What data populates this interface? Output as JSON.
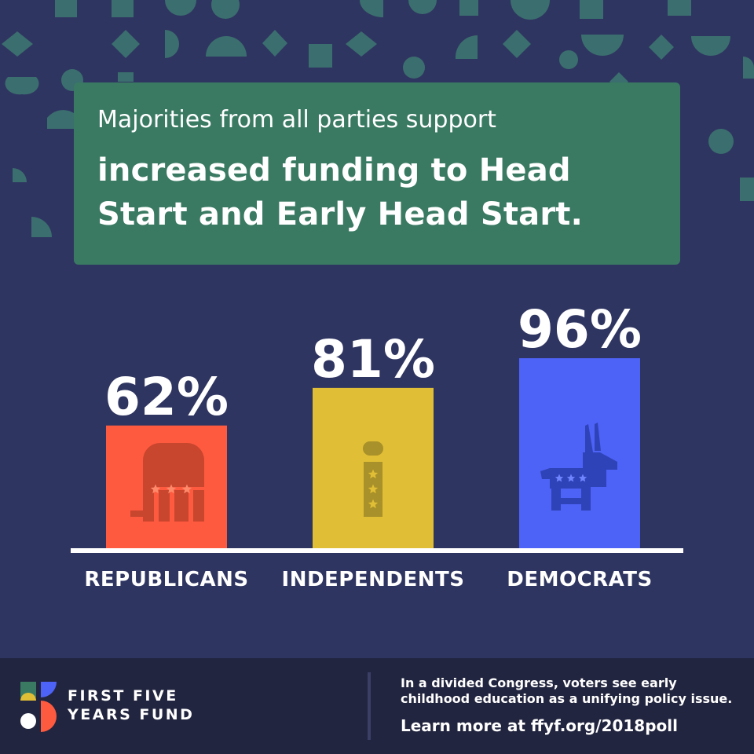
{
  "headline": {
    "line1": "Majorities from all parties support",
    "line2a": "increased funding to Head",
    "line2b": "Start and Early Head Start."
  },
  "chart_data": {
    "type": "bar",
    "categories": [
      "REPUBLICANS",
      "INDEPENDENTS",
      "DEMOCRATS"
    ],
    "values": [
      62,
      81,
      96
    ],
    "value_labels": [
      "62%",
      "81%",
      "96%"
    ],
    "colors": [
      "#fe5a3f",
      "#e0be35",
      "#4d62f6"
    ],
    "icons": [
      "elephant-icon",
      "independent-i-icon",
      "donkey-icon"
    ],
    "ylim": [
      0,
      100
    ],
    "grid": false,
    "legend": "none"
  },
  "footer": {
    "brand_line1": "FIRST FIVE",
    "brand_line2": "YEARS FUND",
    "message": "In a divided Congress, voters see early childhood education as a unifying policy issue.",
    "link": "Learn more at ffyf.org/2018poll"
  },
  "colors": {
    "background": "#2f3561",
    "headline_box": "#3a7a63",
    "decor_shapes": "#3b6e6e",
    "footer_bg": "#22253f"
  }
}
